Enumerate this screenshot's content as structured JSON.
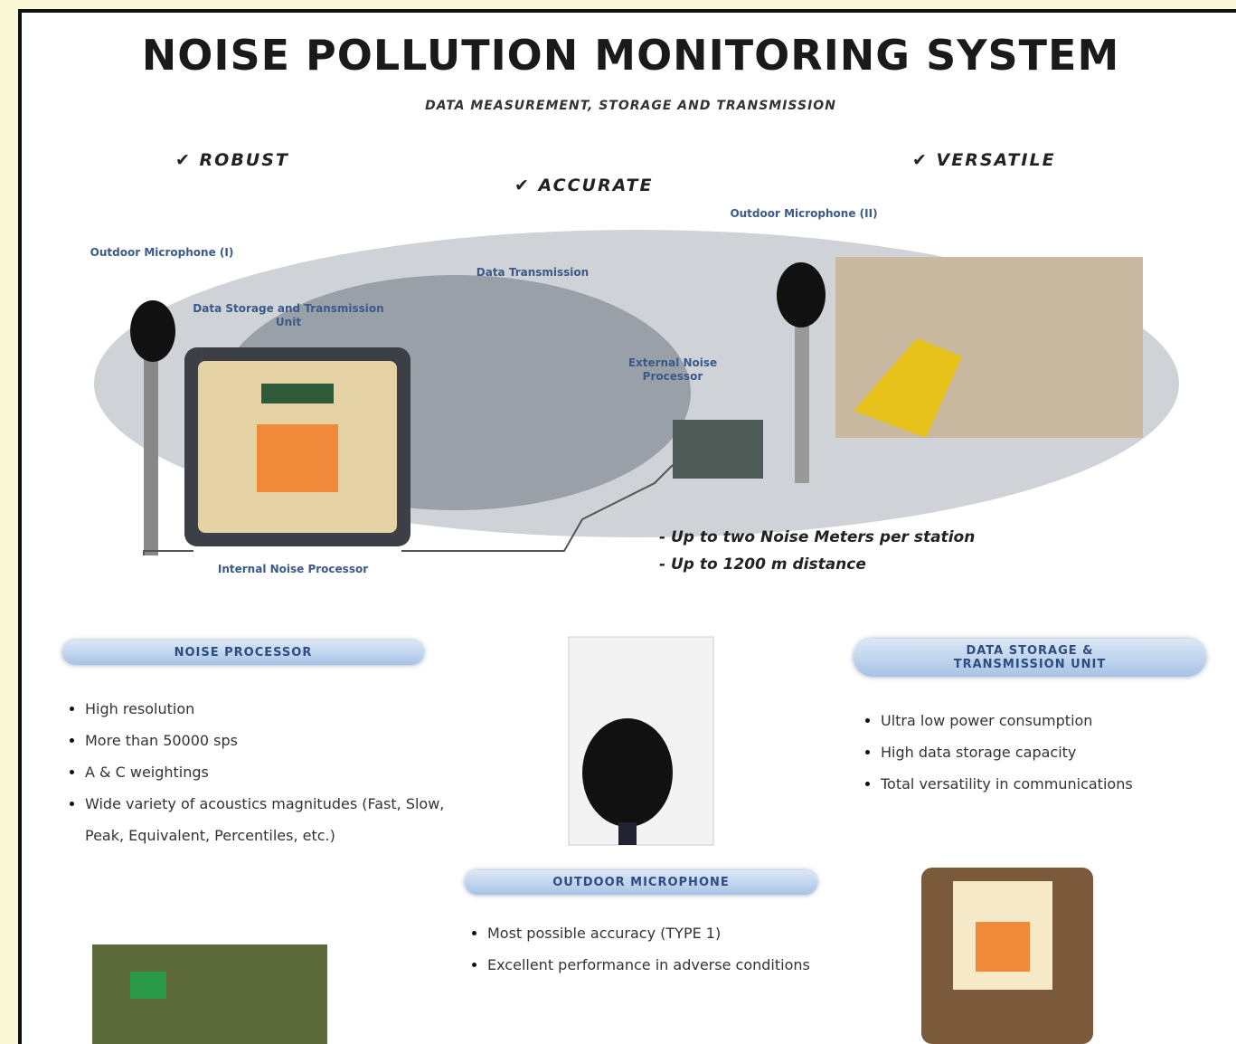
{
  "header": {
    "title": "NOISE POLLUTION MONITORING SYSTEM",
    "subtitle": "DATA MEASUREMENT, STORAGE AND TRANSMISSION"
  },
  "features": [
    "ROBUST",
    "ACCURATE",
    "VERSATILE"
  ],
  "diagram": {
    "labels": [
      "Outdoor Microphone (I)",
      "Data Storage and Transmission Unit",
      "Data Transmission",
      "Outdoor Microphone (II)",
      "External Noise Processor",
      "Internal Noise Processor"
    ],
    "notes": [
      "- Up to two Noise Meters per station",
      "- Up to 1200 m distance"
    ]
  },
  "sections": [
    {
      "title": "NOISE PROCESSOR",
      "items": [
        "High resolution",
        "More than 50000 sps",
        "A & C weightings",
        "Wide variety of acoustics magnitudes (Fast, Slow, Peak, Equivalent, Percentiles, etc.)"
      ]
    },
    {
      "title": "OUTDOOR MICROPHONE",
      "items": [
        "Most possible accuracy (TYPE 1)",
        "Excellent performance in adverse conditions"
      ]
    },
    {
      "title": "DATA STORAGE & TRANSMISSION UNIT",
      "items": [
        "Ultra low power consumption",
        "High data storage capacity",
        "Total versatility in communications"
      ]
    }
  ]
}
